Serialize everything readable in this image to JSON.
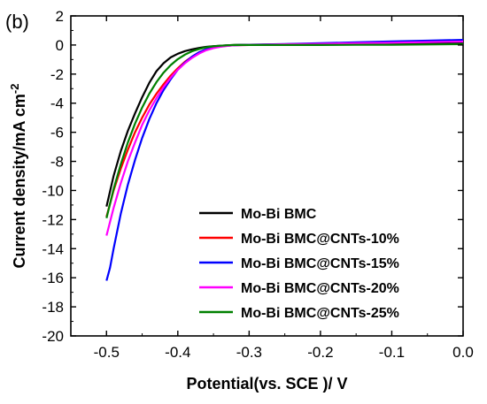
{
  "panel_label": "(b)",
  "chart_data": {
    "type": "line",
    "title": "",
    "xlabel": "Potential(vs. SCE )/ V",
    "ylabel_main": "Current density/mA cm",
    "ylabel_sup": "-2",
    "xlim": [
      -0.55,
      0.0
    ],
    "ylim": [
      -20,
      2
    ],
    "xticks": [
      -0.5,
      -0.4,
      -0.3,
      -0.2,
      -0.1,
      0.0
    ],
    "xtick_labels": [
      "-0.5",
      "-0.4",
      "-0.3",
      "-0.2",
      "-0.1",
      "0.0"
    ],
    "yticks": [
      2,
      0,
      -2,
      -4,
      -6,
      -8,
      -10,
      -12,
      -14,
      -16,
      -18,
      -20
    ],
    "ytick_labels": [
      "2",
      "0",
      "-2",
      "-4",
      "-6",
      "-8",
      "-10",
      "-12",
      "-14",
      "-16",
      "-18",
      "-20"
    ],
    "grid": false,
    "legend_position": "bottom-right",
    "series": [
      {
        "name": "Mo-Bi BMC",
        "color": "#000000",
        "x": [
          -0.5,
          -0.49,
          -0.48,
          -0.47,
          -0.46,
          -0.45,
          -0.44,
          -0.43,
          -0.42,
          -0.41,
          -0.4,
          -0.39,
          -0.38,
          -0.37,
          -0.36,
          -0.35,
          -0.34,
          -0.33,
          -0.32,
          -0.3,
          -0.25,
          -0.2,
          -0.15,
          -0.1,
          -0.05,
          0.0
        ],
        "y": [
          -11.1,
          -9.0,
          -7.3,
          -5.9,
          -4.7,
          -3.6,
          -2.6,
          -1.8,
          -1.25,
          -0.85,
          -0.6,
          -0.42,
          -0.3,
          -0.2,
          -0.13,
          -0.08,
          -0.05,
          -0.02,
          0.0,
          0.02,
          0.03,
          0.04,
          0.05,
          0.08,
          0.1,
          0.15
        ]
      },
      {
        "name": "Mo-Bi BMC@CNTs-10%",
        "color": "#ff0000",
        "x": [
          -0.5,
          -0.49,
          -0.48,
          -0.47,
          -0.46,
          -0.45,
          -0.44,
          -0.43,
          -0.42,
          -0.41,
          -0.4,
          -0.39,
          -0.38,
          -0.37,
          -0.36,
          -0.35,
          -0.34,
          -0.33,
          -0.32,
          -0.3,
          -0.25,
          -0.2,
          -0.15,
          -0.1,
          -0.05,
          0.0
        ],
        "y": [
          -11.8,
          -10.0,
          -8.5,
          -7.2,
          -6.0,
          -5.0,
          -4.1,
          -3.35,
          -2.7,
          -2.1,
          -1.6,
          -1.15,
          -0.8,
          -0.5,
          -0.3,
          -0.18,
          -0.1,
          -0.05,
          -0.02,
          0.0,
          0.05,
          0.08,
          0.12,
          0.18,
          0.22,
          0.27
        ]
      },
      {
        "name": "Mo-Bi BMC@CNTs-15%",
        "color": "#0000ff",
        "x": [
          -0.5,
          -0.495,
          -0.49,
          -0.48,
          -0.47,
          -0.46,
          -0.45,
          -0.44,
          -0.43,
          -0.42,
          -0.41,
          -0.4,
          -0.39,
          -0.38,
          -0.37,
          -0.36,
          -0.35,
          -0.34,
          -0.33,
          -0.32,
          -0.3,
          -0.25,
          -0.2,
          -0.15,
          -0.1,
          -0.05,
          0.0
        ],
        "y": [
          -16.2,
          -15.3,
          -14.0,
          -11.6,
          -9.6,
          -7.9,
          -6.4,
          -5.1,
          -4.0,
          -3.1,
          -2.35,
          -1.7,
          -1.2,
          -0.8,
          -0.5,
          -0.3,
          -0.17,
          -0.09,
          -0.04,
          -0.01,
          0.02,
          0.07,
          0.12,
          0.18,
          0.25,
          0.3,
          0.35
        ]
      },
      {
        "name": "Mo-Bi BMC@CNTs-20%",
        "color": "#ff00ff",
        "x": [
          -0.5,
          -0.49,
          -0.48,
          -0.47,
          -0.46,
          -0.45,
          -0.44,
          -0.43,
          -0.42,
          -0.41,
          -0.4,
          -0.39,
          -0.38,
          -0.37,
          -0.36,
          -0.35,
          -0.34,
          -0.33,
          -0.32,
          -0.3,
          -0.25,
          -0.2,
          -0.15,
          -0.1,
          -0.05,
          0.0
        ],
        "y": [
          -13.1,
          -11.2,
          -9.5,
          -8.0,
          -6.7,
          -5.5,
          -4.5,
          -3.65,
          -2.9,
          -2.25,
          -1.7,
          -1.25,
          -0.88,
          -0.58,
          -0.36,
          -0.21,
          -0.12,
          -0.06,
          -0.02,
          0.0,
          0.05,
          0.08,
          0.12,
          0.16,
          0.2,
          0.24
        ]
      },
      {
        "name": "Mo-Bi BMC@CNTs-25%",
        "color": "#008000",
        "x": [
          -0.5,
          -0.49,
          -0.48,
          -0.47,
          -0.46,
          -0.45,
          -0.44,
          -0.43,
          -0.42,
          -0.41,
          -0.4,
          -0.39,
          -0.38,
          -0.37,
          -0.36,
          -0.35,
          -0.34,
          -0.33,
          -0.32,
          -0.3,
          -0.25,
          -0.2,
          -0.15,
          -0.1,
          -0.05,
          0.0
        ],
        "y": [
          -11.9,
          -9.9,
          -8.2,
          -6.7,
          -5.4,
          -4.3,
          -3.35,
          -2.55,
          -1.9,
          -1.38,
          -0.97,
          -0.66,
          -0.43,
          -0.27,
          -0.16,
          -0.09,
          -0.05,
          -0.02,
          0.0,
          0.0,
          0.0,
          0.0,
          0.01,
          0.02,
          0.04,
          0.06
        ]
      }
    ]
  }
}
